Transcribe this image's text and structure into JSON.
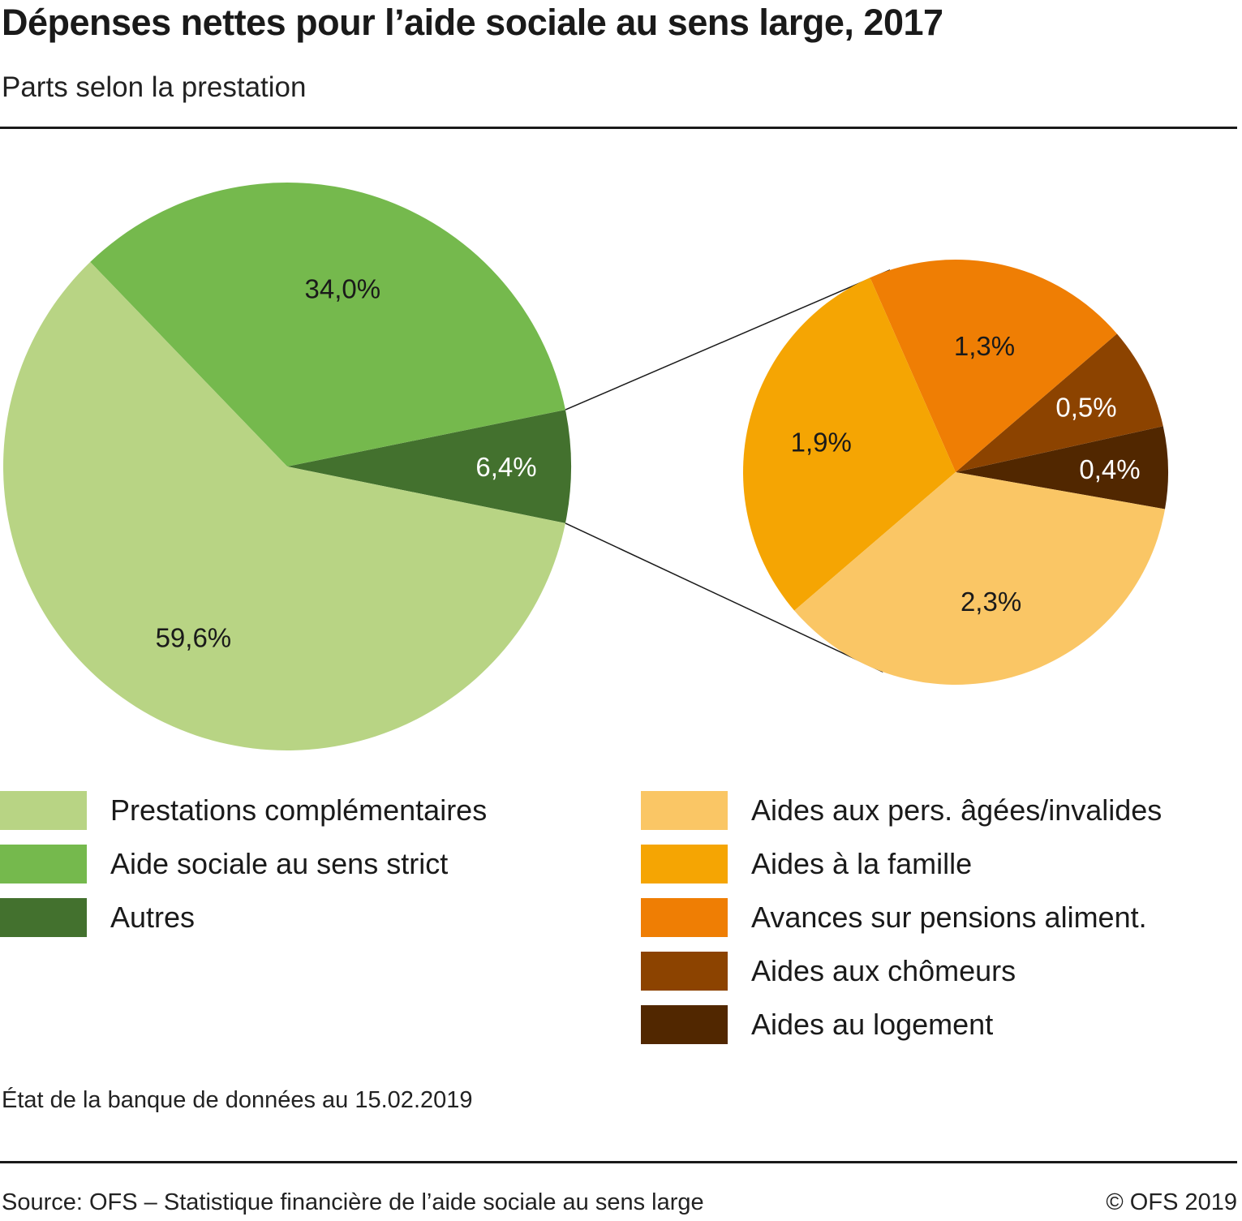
{
  "header": {
    "title": "Dépenses nettes pour l’aide sociale au sens large, 2017",
    "subtitle": "Parts selon la prestation"
  },
  "chart_data": {
    "type": "pie",
    "title": "Dépenses nettes pour l’aide sociale au sens large, 2017",
    "subtitle": "Parts selon la prestation",
    "unit": "%",
    "main_pie": {
      "slices": [
        {
          "label": "Autres",
          "value": 6.4,
          "value_label": "6,4%",
          "color": "#43712e",
          "label_color": "#ffffff"
        },
        {
          "label": "Aide sociale au sens strict",
          "value": 34.0,
          "value_label": "34,0%",
          "color": "#75b94d",
          "label_color": "#1a1a1a"
        },
        {
          "label": "Prestations complémentaires",
          "value": 59.6,
          "value_label": "59,6%",
          "color": "#b8d484",
          "label_color": "#1a1a1a"
        }
      ],
      "exploded_slice": "Autres"
    },
    "detail_pie": {
      "of": "Autres",
      "slices": [
        {
          "label": "Aides au logement",
          "value": 0.4,
          "value_label": "0,4%",
          "color": "#512700",
          "label_color": "#ffffff"
        },
        {
          "label": "Aides aux chômeurs",
          "value": 0.5,
          "value_label": "0,5%",
          "color": "#8c4300",
          "label_color": "#ffffff"
        },
        {
          "label": "Avances sur pensions aliment.",
          "value": 1.3,
          "value_label": "1,3%",
          "color": "#ef7e04",
          "label_color": "#1a1a1a"
        },
        {
          "label": "Aides à la famille",
          "value": 1.9,
          "value_label": "1,9%",
          "color": "#f5a503",
          "label_color": "#1a1a1a"
        },
        {
          "label": "Aides aux pers. âgées/invalides",
          "value": 2.3,
          "value_label": "2,3%",
          "color": "#fac665",
          "label_color": "#1a1a1a"
        }
      ]
    },
    "legend": {
      "left": [
        {
          "label": "Prestations complémentaires",
          "color": "#b8d484"
        },
        {
          "label": "Aide sociale au sens strict",
          "color": "#75b94d"
        },
        {
          "label": "Autres",
          "color": "#43712e"
        }
      ],
      "right": [
        {
          "label": "Aides aux pers. âgées/invalides",
          "color": "#fac665"
        },
        {
          "label": "Aides à la famille",
          "color": "#f5a503"
        },
        {
          "label": "Avances sur pensions aliment.",
          "color": "#ef7e04"
        },
        {
          "label": "Aides aux chômeurs",
          "color": "#8c4300"
        },
        {
          "label": "Aides au logement",
          "color": "#512700"
        }
      ],
      "placement": "bottom"
    }
  },
  "footer": {
    "note": "État de la banque de données au 15.02.2019",
    "source": "Source: OFS – Statistique financière de l’aide sociale au sens large",
    "copyright": "© OFS 2019"
  }
}
